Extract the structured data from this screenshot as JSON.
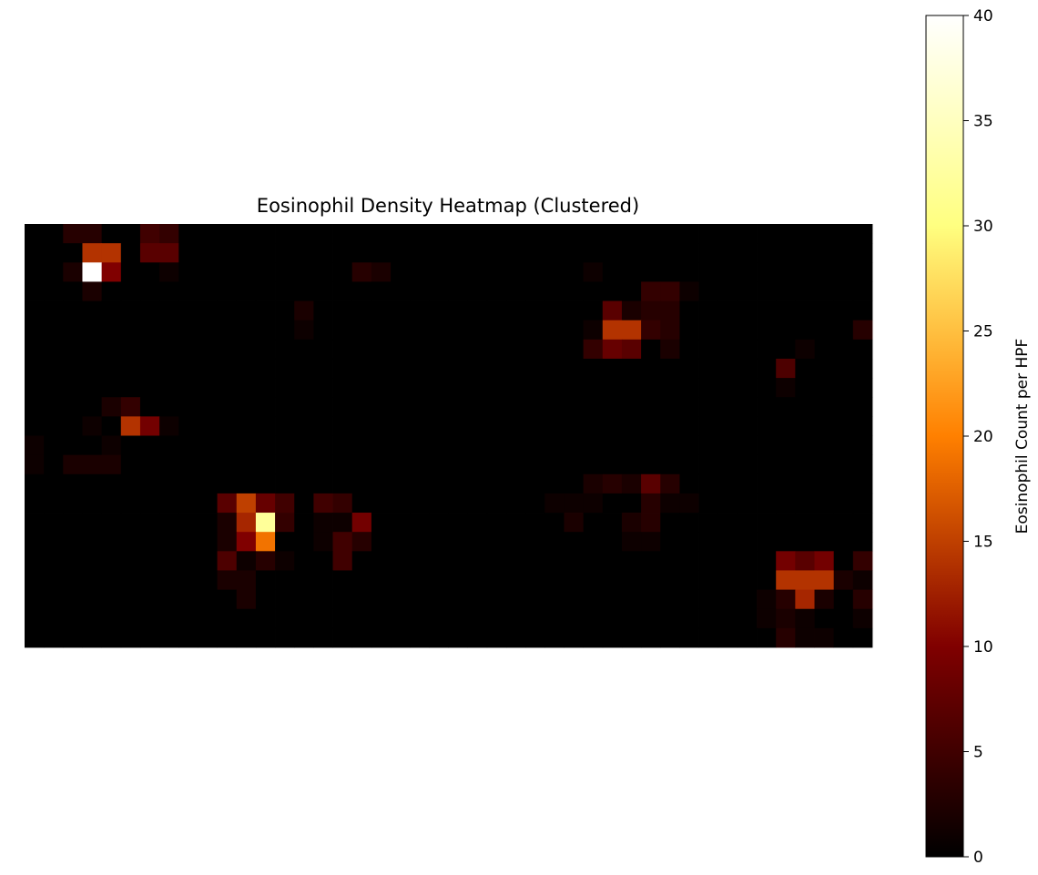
{
  "chart_data": {
    "type": "heatmap",
    "title": "Eosinophil Density Heatmap (Clustered)",
    "xlabel": "",
    "ylabel": "",
    "colormap": "afmhot",
    "colorbar": {
      "label": "Eosinophil Count per HPF",
      "vmin": 0,
      "vmax": 40,
      "ticks": [
        0,
        5,
        10,
        15,
        20,
        25,
        30,
        35,
        40
      ]
    },
    "rows": 22,
    "cols": 44,
    "grid": false,
    "axes_visible": false,
    "values": [
      [
        0,
        0,
        3,
        3,
        0,
        0,
        5,
        4,
        0,
        0,
        0,
        0,
        0,
        0,
        0,
        0,
        0,
        0,
        0,
        0,
        0,
        0,
        0,
        0,
        0,
        0,
        0,
        0,
        0,
        0,
        0,
        0,
        0,
        0,
        0,
        0,
        0,
        0,
        0,
        0,
        0,
        0,
        0,
        0
      ],
      [
        0,
        0,
        0,
        14,
        14,
        0,
        7,
        7,
        0,
        0,
        0,
        0,
        0,
        0,
        0,
        0,
        0,
        0,
        0,
        0,
        0,
        0,
        0,
        0,
        0,
        0,
        0,
        0,
        0,
        0,
        0,
        0,
        0,
        0,
        0,
        0,
        0,
        0,
        0,
        0,
        0,
        0,
        0,
        0
      ],
      [
        0,
        0,
        2,
        40,
        10,
        0,
        0,
        1,
        0,
        0,
        0,
        0,
        0,
        0,
        0,
        0,
        0,
        3,
        2,
        0,
        0,
        0,
        0,
        0,
        0,
        0,
        0,
        0,
        0,
        1,
        0,
        0,
        0,
        0,
        0,
        0,
        0,
        0,
        0,
        0,
        0,
        0,
        0,
        0
      ],
      [
        0,
        0,
        0,
        2,
        0,
        0,
        0,
        0,
        0,
        0,
        0,
        0,
        0,
        0,
        0,
        0,
        0,
        0,
        0,
        0,
        0,
        0,
        0,
        0,
        0,
        0,
        0,
        0,
        0,
        0,
        0,
        0,
        4,
        4,
        1,
        0,
        0,
        0,
        0,
        0,
        0,
        0,
        0,
        0
      ],
      [
        0,
        0,
        0,
        0,
        0,
        0,
        0,
        0,
        0,
        0,
        0,
        0,
        0,
        0,
        2,
        0,
        0,
        0,
        0,
        0,
        0,
        0,
        0,
        0,
        0,
        0,
        0,
        0,
        0,
        0,
        7,
        2,
        3,
        3,
        0,
        0,
        0,
        0,
        0,
        0,
        0,
        0,
        0,
        0
      ],
      [
        0,
        0,
        0,
        0,
        0,
        0,
        0,
        0,
        0,
        0,
        0,
        0,
        0,
        0,
        1,
        0,
        0,
        0,
        0,
        0,
        0,
        0,
        0,
        0,
        0,
        0,
        0,
        0,
        0,
        1,
        14,
        14,
        4,
        3,
        0,
        0,
        0,
        0,
        0,
        0,
        0,
        0,
        0,
        3
      ],
      [
        0,
        0,
        0,
        0,
        0,
        0,
        0,
        0,
        0,
        0,
        0,
        0,
        0,
        0,
        0,
        0,
        0,
        0,
        0,
        0,
        0,
        0,
        0,
        0,
        0,
        0,
        0,
        0,
        0,
        4,
        8,
        7,
        0,
        2,
        0,
        0,
        0,
        0,
        0,
        0,
        1,
        0,
        0,
        0
      ],
      [
        0,
        0,
        0,
        0,
        0,
        0,
        0,
        0,
        0,
        0,
        0,
        0,
        0,
        0,
        0,
        0,
        0,
        0,
        0,
        0,
        0,
        0,
        0,
        0,
        0,
        0,
        0,
        0,
        0,
        0,
        0,
        0,
        0,
        0,
        0,
        0,
        0,
        0,
        0,
        6,
        0,
        0,
        0,
        0
      ],
      [
        0,
        0,
        0,
        0,
        0,
        0,
        0,
        0,
        0,
        0,
        0,
        0,
        0,
        0,
        0,
        0,
        0,
        0,
        0,
        0,
        0,
        0,
        0,
        0,
        0,
        0,
        0,
        0,
        0,
        0,
        0,
        0,
        0,
        0,
        0,
        0,
        0,
        0,
        0,
        1,
        0,
        0,
        0,
        0
      ],
      [
        0,
        0,
        0,
        0,
        2,
        4,
        0,
        0,
        0,
        0,
        0,
        0,
        0,
        0,
        0,
        0,
        0,
        0,
        0,
        0,
        0,
        0,
        0,
        0,
        0,
        0,
        0,
        0,
        0,
        0,
        0,
        0,
        0,
        0,
        0,
        0,
        0,
        0,
        0,
        0,
        0,
        0,
        0,
        0
      ],
      [
        0,
        0,
        0,
        1,
        0,
        14,
        9,
        1,
        0,
        0,
        0,
        0,
        0,
        0,
        0,
        0,
        0,
        0,
        0,
        0,
        0,
        0,
        0,
        0,
        0,
        0,
        0,
        0,
        0,
        0,
        0,
        0,
        0,
        0,
        0,
        0,
        0,
        0,
        0,
        0,
        0,
        0,
        0,
        0
      ],
      [
        1,
        0,
        0,
        0,
        1,
        0,
        0,
        0,
        0,
        0,
        0,
        0,
        0,
        0,
        0,
        0,
        0,
        0,
        0,
        0,
        0,
        0,
        0,
        0,
        0,
        0,
        0,
        0,
        0,
        0,
        0,
        0,
        0,
        0,
        0,
        0,
        0,
        0,
        0,
        0,
        0,
        0,
        0,
        0
      ],
      [
        1,
        0,
        2,
        2,
        2,
        0,
        0,
        0,
        0,
        0,
        0,
        0,
        0,
        0,
        0,
        0,
        0,
        0,
        0,
        0,
        0,
        0,
        0,
        0,
        0,
        0,
        0,
        0,
        0,
        0,
        0,
        0,
        0,
        0,
        0,
        0,
        0,
        0,
        0,
        0,
        0,
        0,
        0,
        0
      ],
      [
        0,
        0,
        0,
        0,
        0,
        0,
        0,
        0,
        0,
        0,
        0,
        0,
        0,
        0,
        0,
        0,
        0,
        0,
        0,
        0,
        0,
        0,
        0,
        0,
        0,
        0,
        0,
        0,
        0,
        2,
        3,
        2,
        7,
        3,
        0,
        0,
        0,
        0,
        0,
        0,
        0,
        0,
        0,
        0
      ],
      [
        0,
        0,
        0,
        0,
        0,
        0,
        0,
        0,
        0,
        0,
        7,
        15,
        8,
        5,
        0,
        5,
        4,
        0,
        0,
        0,
        0,
        0,
        0,
        0,
        0,
        0,
        0,
        1,
        1,
        1,
        0,
        0,
        3,
        1,
        1,
        0,
        0,
        0,
        0,
        0,
        0,
        0,
        0,
        0
      ],
      [
        0,
        0,
        0,
        0,
        0,
        0,
        0,
        0,
        0,
        0,
        2,
        13,
        32,
        4,
        0,
        1,
        1,
        9,
        0,
        0,
        0,
        0,
        0,
        0,
        0,
        0,
        0,
        0,
        2,
        0,
        0,
        2,
        3,
        0,
        0,
        0,
        0,
        0,
        0,
        0,
        0,
        0,
        0,
        0
      ],
      [
        0,
        0,
        0,
        0,
        0,
        0,
        0,
        0,
        0,
        0,
        2,
        10,
        19,
        0,
        0,
        1,
        5,
        3,
        0,
        0,
        0,
        0,
        0,
        0,
        0,
        0,
        0,
        0,
        0,
        0,
        0,
        1,
        1,
        0,
        0,
        0,
        0,
        0,
        0,
        0,
        0,
        0,
        0,
        0
      ],
      [
        0,
        0,
        0,
        0,
        0,
        0,
        0,
        0,
        0,
        0,
        6,
        1,
        3,
        1,
        0,
        0,
        5,
        0,
        0,
        0,
        0,
        0,
        0,
        0,
        0,
        0,
        0,
        0,
        0,
        0,
        0,
        0,
        0,
        0,
        0,
        0,
        0,
        0,
        0,
        9,
        7,
        9,
        0,
        4
      ],
      [
        0,
        0,
        0,
        0,
        0,
        0,
        0,
        0,
        0,
        0,
        2,
        2,
        0,
        0,
        0,
        0,
        0,
        0,
        0,
        0,
        0,
        0,
        0,
        0,
        0,
        0,
        0,
        0,
        0,
        0,
        0,
        0,
        0,
        0,
        0,
        0,
        0,
        0,
        0,
        14,
        14,
        14,
        2,
        1
      ],
      [
        0,
        0,
        0,
        0,
        0,
        0,
        0,
        0,
        0,
        0,
        0,
        2,
        0,
        0,
        0,
        0,
        0,
        0,
        0,
        0,
        0,
        0,
        0,
        0,
        0,
        0,
        0,
        0,
        0,
        0,
        0,
        0,
        0,
        0,
        0,
        0,
        0,
        0,
        1,
        3,
        13,
        2,
        0,
        3
      ],
      [
        0,
        0,
        0,
        0,
        0,
        0,
        0,
        0,
        0,
        0,
        0,
        0,
        0,
        0,
        0,
        0,
        0,
        0,
        0,
        0,
        0,
        0,
        0,
        0,
        0,
        0,
        0,
        0,
        0,
        0,
        0,
        0,
        0,
        0,
        0,
        0,
        0,
        0,
        1,
        2,
        1,
        0,
        0,
        1
      ],
      [
        0,
        0,
        0,
        0,
        0,
        0,
        0,
        0,
        0,
        0,
        0,
        0,
        0,
        0,
        0,
        0,
        0,
        0,
        0,
        0,
        0,
        0,
        0,
        0,
        0,
        0,
        0,
        0,
        0,
        0,
        0,
        0,
        0,
        0,
        0,
        0,
        0,
        0,
        0,
        3,
        1,
        1,
        0,
        0
      ]
    ]
  }
}
